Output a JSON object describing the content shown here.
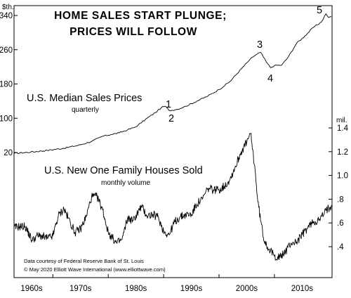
{
  "chart_data": {
    "type": "line",
    "title_lines": [
      "HOME SALES START PLUNGE;",
      "PRICES WILL FOLLOW"
    ],
    "left_axis": {
      "unit": "$th.",
      "ticks": [
        "340",
        "260",
        "180",
        "100",
        "20"
      ]
    },
    "right_axis": {
      "unit": "mil.",
      "ticks": [
        "1.4",
        "1.2",
        "1.0",
        ".8",
        ".6",
        ".4"
      ]
    },
    "x_ticks": [
      "1960s",
      "1970s",
      "1980s",
      "1990s",
      "2000s",
      "2010s"
    ],
    "x_range": [
      1963,
      2020.4
    ],
    "series": [
      {
        "name": "U.S. Median Sales Prices",
        "subtitle": "quarterly",
        "axis": "left",
        "ylim": [
          20,
          340
        ],
        "x": [
          1963,
          1966,
          1969,
          1972,
          1975,
          1977,
          1979,
          1980.5,
          1982,
          1983.5,
          1985,
          1987,
          1988.5,
          1989.6,
          1990.3,
          1991,
          1992.5,
          1994,
          1996,
          1998,
          2000,
          2002,
          2004,
          2005.5,
          2006.5,
          2007.5,
          2008.5,
          2009.3,
          2010,
          2011.3,
          2012.5,
          2014,
          2015.5,
          2017,
          2018.5,
          2019.3,
          2019.8,
          2020.3
        ],
        "values": [
          18,
          21,
          25,
          30,
          38,
          46,
          58,
          62,
          66,
          73,
          80,
          100,
          113,
          125,
          128,
          118,
          121,
          128,
          140,
          152,
          167,
          186,
          215,
          236,
          247,
          254,
          232,
          218,
          223,
          224,
          243,
          275,
          292,
          312,
          325,
          344,
          335,
          337
        ]
      },
      {
        "name": "U.S. New One Family Houses Sold",
        "subtitle": "monthly volume",
        "axis": "right",
        "ylim": [
          0.3,
          1.4
        ],
        "x": [
          1963,
          1964,
          1965,
          1966.3,
          1967,
          1968,
          1969,
          1970,
          1971,
          1972,
          1972.8,
          1974,
          1975,
          1976,
          1977,
          1978,
          1979,
          1980,
          1981.5,
          1982.5,
          1983.5,
          1984.5,
          1986,
          1987,
          1988,
          1989,
          1990,
          1991,
          1992,
          1993,
          1994,
          1995,
          1996,
          1997,
          1998,
          1999,
          2000,
          2001,
          2002,
          2003,
          2004,
          2005,
          2005.7,
          2006.5,
          2007,
          2008,
          2009,
          2010,
          2011,
          2012,
          2013,
          2014,
          2015,
          2016,
          2017,
          2018,
          2019,
          2019.6,
          2020,
          2020.3
        ],
        "values": [
          0.56,
          0.57,
          0.57,
          0.45,
          0.49,
          0.49,
          0.47,
          0.49,
          0.66,
          0.72,
          0.64,
          0.52,
          0.55,
          0.65,
          0.82,
          0.82,
          0.71,
          0.52,
          0.43,
          0.46,
          0.64,
          0.62,
          0.74,
          0.66,
          0.67,
          0.65,
          0.53,
          0.5,
          0.61,
          0.65,
          0.67,
          0.67,
          0.76,
          0.8,
          0.89,
          0.88,
          0.88,
          0.91,
          0.97,
          1.08,
          1.2,
          1.28,
          1.35,
          1.05,
          0.78,
          0.48,
          0.38,
          0.32,
          0.31,
          0.36,
          0.43,
          0.44,
          0.5,
          0.56,
          0.61,
          0.62,
          0.68,
          0.72,
          0.73,
          0.75
        ]
      }
    ],
    "wave_labels": [
      {
        "text": "1",
        "x": 1989.6
      },
      {
        "text": "2",
        "x": 1990.3
      },
      {
        "text": "3",
        "x": 2006.8
      },
      {
        "text": "4",
        "x": 2009.3
      },
      {
        "text": "5",
        "x": 2019.3
      }
    ],
    "credit_lines": [
      "Data courtesy of Federal Reserve Bank of St. Louis",
      "© May 2020 Elliott Wave International (www.elliottwave.com)"
    ],
    "grid": false,
    "legend": "inline"
  }
}
